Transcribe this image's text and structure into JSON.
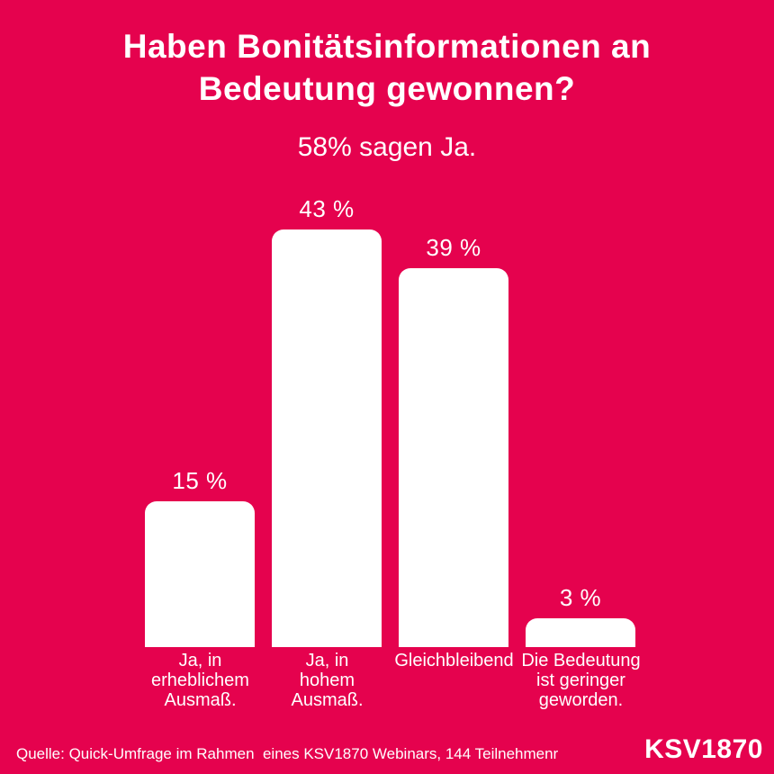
{
  "colors": {
    "background": "#E5024E",
    "bar_fill": "#FFFFFF",
    "text": "#FFFFFF"
  },
  "header": {
    "title_line1": "Haben Bonitätsinformationen an",
    "title_line2": "Bedeutung gewonnen?",
    "subtitle": "58% sagen Ja."
  },
  "chart_data": {
    "type": "bar",
    "title": "Haben Bonitätsinformationen an Bedeutung gewonnen?",
    "subtitle": "58% sagen Ja.",
    "categories": [
      "Ja, in erheblichem Ausmaß.",
      "Ja, in hohem Ausmaß.",
      "Gleichbleibend",
      "Die Bedeutung ist geringer geworden."
    ],
    "values": [
      15,
      43,
      39,
      3
    ],
    "unit": "%",
    "ylim": [
      0,
      45
    ],
    "grid": false,
    "legend": "none",
    "bars": [
      {
        "value": 15,
        "value_label": "15 %",
        "label": "Ja, in\nerheblichem\nAusmaß."
      },
      {
        "value": 43,
        "value_label": "43 %",
        "label": "Ja, in\nhohem\nAusmaß."
      },
      {
        "value": 39,
        "value_label": "39 %",
        "label": "Gleichbleibend"
      },
      {
        "value": 3,
        "value_label": "3 %",
        "label": "Die Bedeutung\nist geringer\ngeworden."
      }
    ]
  },
  "footer": {
    "source": "Quelle: Quick-Umfrage im Rahmen  eines KSV1870 Webinars, 144 Teilnehmenr",
    "logo": "KSV1870"
  }
}
